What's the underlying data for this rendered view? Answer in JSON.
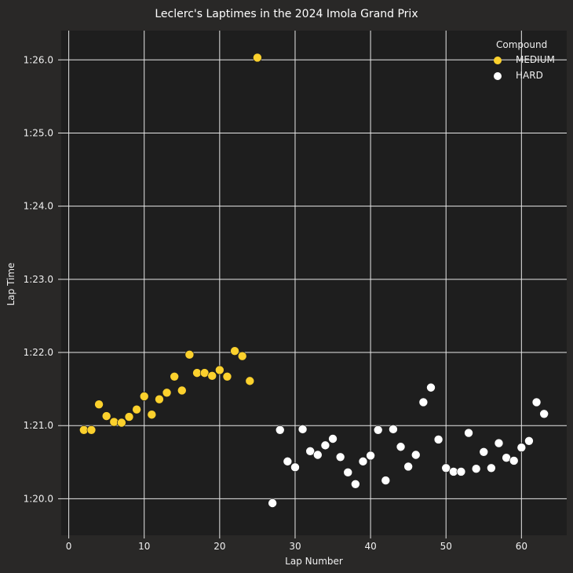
{
  "chart_data": {
    "type": "scatter",
    "title": "Leclerc's Laptimes in the 2024 Imola Grand Prix",
    "xlabel": "Lap Number",
    "ylabel": "Lap Time",
    "xlim": [
      -1,
      66
    ],
    "ylim": [
      79.5,
      86.4
    ],
    "xticks": [
      0,
      10,
      20,
      30,
      40,
      50,
      60
    ],
    "xtick_labels": [
      "0",
      "10",
      "20",
      "30",
      "40",
      "50",
      "60"
    ],
    "yticks": [
      80,
      81,
      82,
      83,
      84,
      85,
      86
    ],
    "ytick_labels": [
      "1:20.0",
      "1:21.0",
      "1:22.0",
      "1:23.0",
      "1:24.0",
      "1:25.0",
      "1:26.0"
    ],
    "grid": true,
    "legend": {
      "title": "Compound",
      "position": "top-right"
    },
    "series": [
      {
        "name": "MEDIUM",
        "color": "#fcd12d",
        "points": [
          [
            2,
            80.94
          ],
          [
            3,
            80.94
          ],
          [
            4,
            81.29
          ],
          [
            5,
            81.13
          ],
          [
            6,
            81.05
          ],
          [
            7,
            81.04
          ],
          [
            8,
            81.12
          ],
          [
            9,
            81.22
          ],
          [
            10,
            81.4
          ],
          [
            11,
            81.15
          ],
          [
            12,
            81.36
          ],
          [
            13,
            81.45
          ],
          [
            14,
            81.67
          ],
          [
            15,
            81.48
          ],
          [
            16,
            81.97
          ],
          [
            17,
            81.72
          ],
          [
            18,
            81.72
          ],
          [
            19,
            81.68
          ],
          [
            20,
            81.76
          ],
          [
            21,
            81.67
          ],
          [
            22,
            82.02
          ],
          [
            23,
            81.95
          ],
          [
            24,
            81.61
          ],
          [
            25,
            86.03
          ]
        ]
      },
      {
        "name": "HARD",
        "color": "#ffffff",
        "points": [
          [
            27,
            79.94
          ],
          [
            28,
            80.94
          ],
          [
            29,
            80.51
          ],
          [
            30,
            80.43
          ],
          [
            31,
            80.95
          ],
          [
            32,
            80.65
          ],
          [
            33,
            80.6
          ],
          [
            34,
            80.73
          ],
          [
            35,
            80.82
          ],
          [
            36,
            80.57
          ],
          [
            37,
            80.36
          ],
          [
            38,
            80.2
          ],
          [
            39,
            80.51
          ],
          [
            40,
            80.59
          ],
          [
            41,
            80.94
          ],
          [
            42,
            80.25
          ],
          [
            43,
            80.95
          ],
          [
            44,
            80.71
          ],
          [
            45,
            80.44
          ],
          [
            46,
            80.6
          ],
          [
            47,
            81.32
          ],
          [
            48,
            81.52
          ],
          [
            49,
            80.81
          ],
          [
            50,
            80.42
          ],
          [
            51,
            80.37
          ],
          [
            52,
            80.37
          ],
          [
            53,
            80.9
          ],
          [
            54,
            80.41
          ],
          [
            55,
            80.64
          ],
          [
            56,
            80.42
          ],
          [
            57,
            80.76
          ],
          [
            58,
            80.56
          ],
          [
            59,
            80.52
          ],
          [
            60,
            80.7
          ],
          [
            61,
            80.79
          ],
          [
            62,
            81.32
          ],
          [
            63,
            81.16
          ]
        ]
      }
    ]
  }
}
